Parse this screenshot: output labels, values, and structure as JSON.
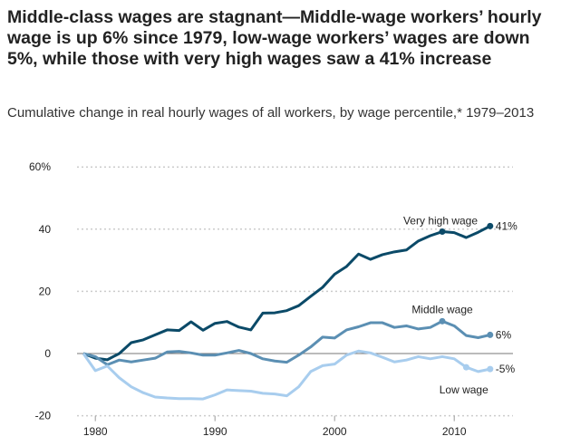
{
  "chart_data": {
    "type": "line",
    "title": "Middle-class wages are stagnant—Middle-wage workers’ hourly wage is up 6% since 1979, low-wage workers’ wages are down 5%, while those with very high wages saw a 41% increase",
    "subtitle": "Cumulative change in real hourly wages of all workers, by wage percentile,* 1979–2013",
    "xlabel": "",
    "ylabel": "",
    "xlim": [
      1978,
      2014
    ],
    "ylim": [
      -20,
      60
    ],
    "y_ticks": [
      "60%",
      "40",
      "20",
      "0",
      "-20"
    ],
    "y_tick_values": [
      60,
      40,
      20,
      0,
      -20
    ],
    "x_ticks": [
      "1980",
      "1990",
      "2000",
      "2010"
    ],
    "x_tick_values": [
      1980,
      1990,
      2000,
      2010
    ],
    "grid": true,
    "x": [
      1979,
      1980,
      1981,
      1982,
      1983,
      1984,
      1985,
      1986,
      1987,
      1988,
      1989,
      1990,
      1991,
      1992,
      1993,
      1994,
      1995,
      1996,
      1997,
      1998,
      1999,
      2000,
      2001,
      2002,
      2003,
      2004,
      2005,
      2006,
      2007,
      2008,
      2009,
      2010,
      2011,
      2012,
      2013
    ],
    "series": [
      {
        "name": "Very high wage",
        "end_label": "41%",
        "color": "#0b4a68",
        "values": [
          0,
          -1.5,
          -2,
          0,
          3.5,
          4.4,
          6,
          7.6,
          7.4,
          10.2,
          7.5,
          9.7,
          10.3,
          8.5,
          7.6,
          13,
          13.1,
          13.8,
          15.4,
          18.4,
          21.3,
          25.5,
          28,
          32,
          30.3,
          31.8,
          32.7,
          33.3,
          36.2,
          37.9,
          39.2,
          38.9,
          37.3,
          39,
          41
        ]
      },
      {
        "name": "Middle wage",
        "end_label": "6%",
        "color": "#5b8fb3",
        "values": [
          0,
          -1,
          -3.6,
          -2.1,
          -2.7,
          -2.1,
          -1.5,
          0.5,
          0.7,
          0.2,
          -0.5,
          -0.5,
          0.2,
          1,
          0,
          -1.7,
          -2.4,
          -2.8,
          -0.5,
          2.1,
          5.3,
          5,
          7.6,
          8.6,
          9.9,
          9.9,
          8.4,
          8.9,
          7.9,
          8.4,
          10.4,
          8.9,
          5.8,
          5.1,
          6
        ]
      },
      {
        "name": "Low wage",
        "end_label": "-5%",
        "color": "#a8cdee",
        "values": [
          0,
          -5.5,
          -4,
          -7.8,
          -10.7,
          -12.6,
          -14,
          -14.3,
          -14.5,
          -14.5,
          -14.6,
          -13.3,
          -11.7,
          -11.9,
          -12.1,
          -12.8,
          -13,
          -13.6,
          -10.7,
          -5.8,
          -3.9,
          -3.4,
          -0.5,
          0.8,
          0.2,
          -1.2,
          -2.7,
          -2.1,
          -1,
          -1.7,
          -1,
          -1.7,
          -4.4,
          -5.8,
          -5
        ]
      }
    ]
  }
}
